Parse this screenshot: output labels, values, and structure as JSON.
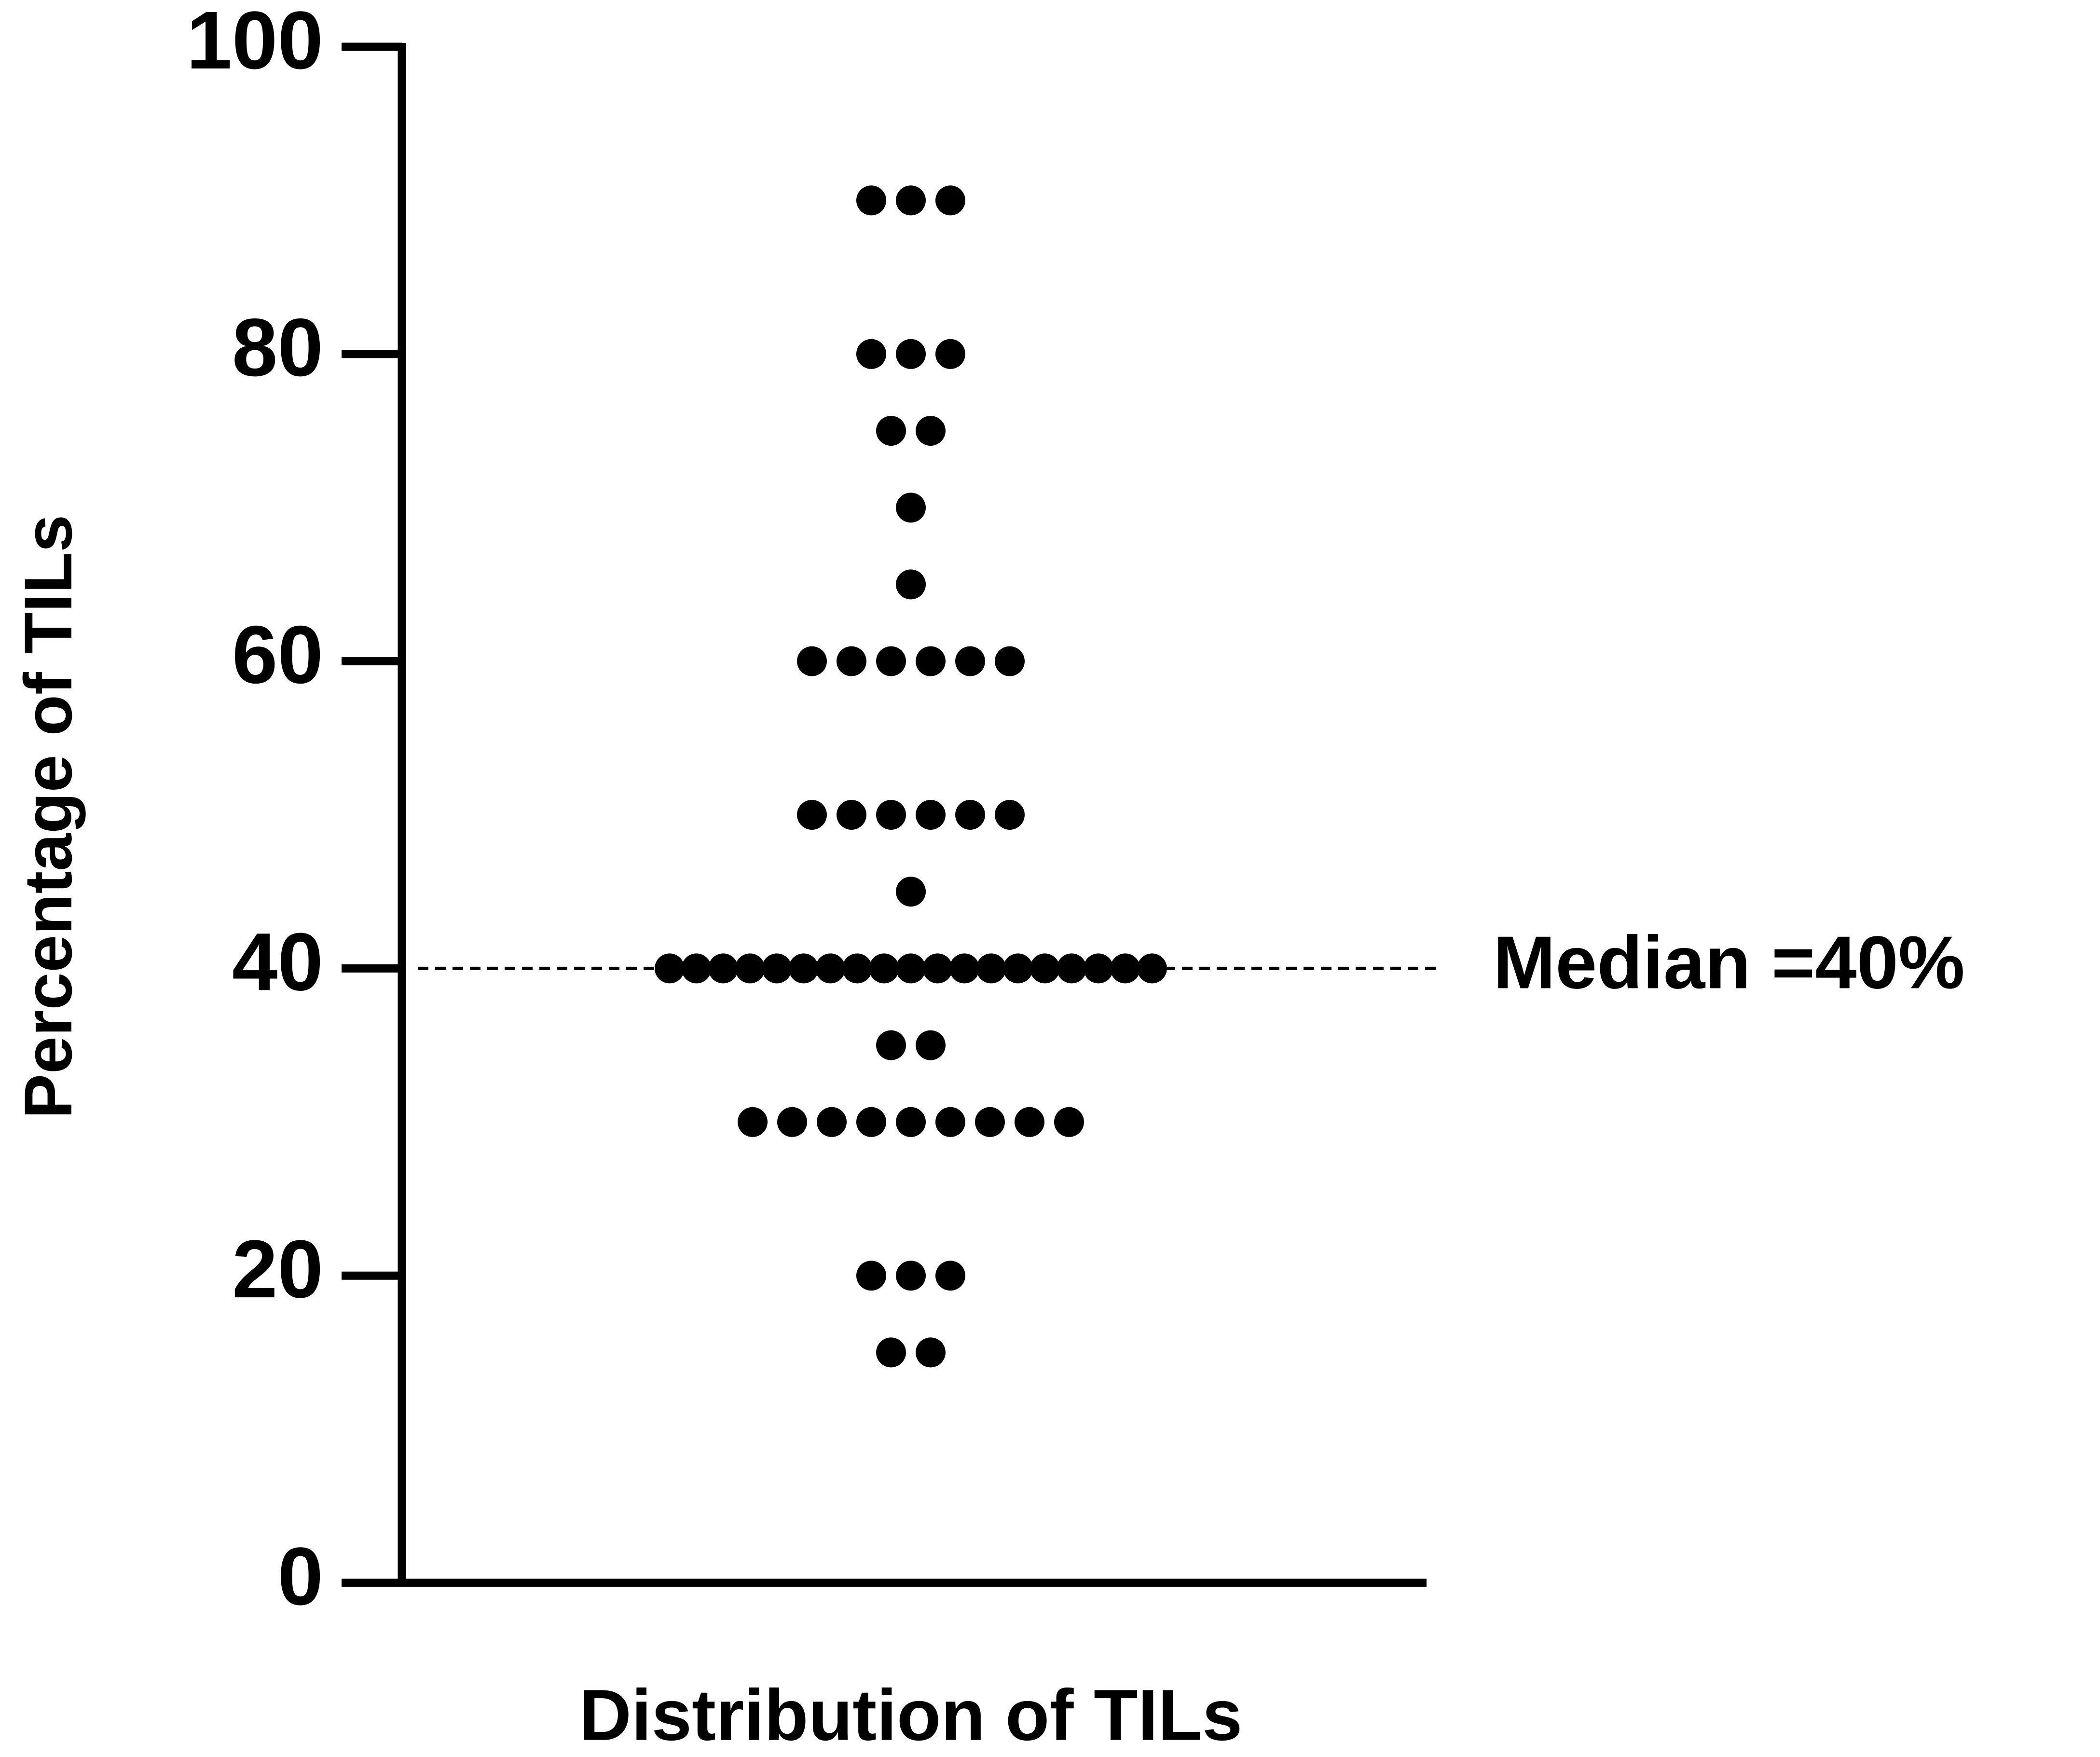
{
  "chart_data": {
    "type": "dot",
    "y_label": "Percentage of TILs",
    "x_label": "Distribution of TILs",
    "color": "#000000",
    "values": [
      90,
      90,
      90,
      80,
      80,
      80,
      75,
      75,
      70,
      65,
      60,
      60,
      60,
      60,
      60,
      60,
      50,
      50,
      50,
      50,
      50,
      50,
      45,
      40,
      40,
      40,
      40,
      40,
      40,
      40,
      40,
      40,
      40,
      40,
      40,
      40,
      40,
      40,
      40,
      40,
      40,
      40,
      35,
      35,
      30,
      30,
      30,
      30,
      30,
      30,
      30,
      30,
      30,
      20,
      20,
      20,
      15,
      15
    ],
    "median": {
      "value": 40,
      "label": "Median =40%"
    },
    "ylim": [
      0,
      100
    ],
    "yticks": [
      0,
      20,
      40,
      60,
      80,
      100
    ]
  }
}
